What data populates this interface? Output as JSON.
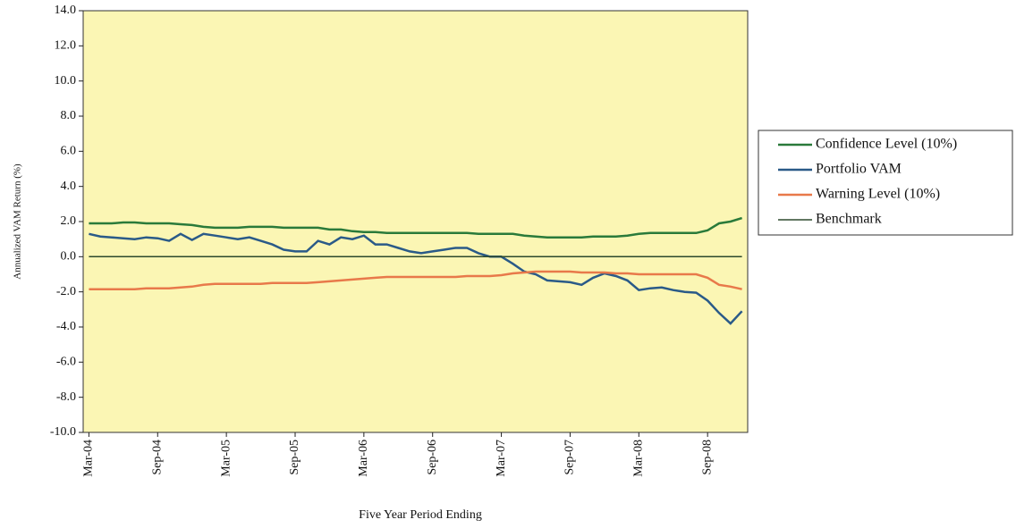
{
  "chart_data": {
    "type": "line",
    "x_label": "Five Year Period Ending",
    "y_label": "Annualized VAM Return (%)",
    "categories": [
      "Mar-04",
      null,
      null,
      null,
      null,
      null,
      "Sep-04",
      null,
      null,
      null,
      null,
      null,
      "Mar-05",
      null,
      null,
      null,
      null,
      null,
      "Sep-05",
      null,
      null,
      null,
      null,
      null,
      "Mar-06",
      null,
      null,
      null,
      null,
      null,
      "Sep-06",
      null,
      null,
      null,
      null,
      null,
      "Mar-07",
      null,
      null,
      null,
      null,
      null,
      "Sep-07",
      null,
      null,
      null,
      null,
      null,
      "Mar-08",
      null,
      null,
      null,
      null,
      null,
      "Sep-08",
      null,
      null,
      null
    ],
    "series": [
      {
        "name": "Confidence Level (10%)",
        "color": "#2a7a3a",
        "values": [
          1.9,
          1.9,
          1.9,
          1.95,
          1.95,
          1.9,
          1.9,
          1.9,
          1.85,
          1.8,
          1.7,
          1.65,
          1.65,
          1.65,
          1.7,
          1.7,
          1.7,
          1.65,
          1.65,
          1.65,
          1.65,
          1.55,
          1.55,
          1.45,
          1.4,
          1.4,
          1.35,
          1.35,
          1.35,
          1.35,
          1.35,
          1.35,
          1.35,
          1.35,
          1.3,
          1.3,
          1.3,
          1.3,
          1.2,
          1.15,
          1.1,
          1.1,
          1.1,
          1.1,
          1.15,
          1.15,
          1.15,
          1.2,
          1.3,
          1.35,
          1.35,
          1.35,
          1.35,
          1.35,
          1.5,
          1.9,
          2.0,
          2.2
        ]
      },
      {
        "name": "Portfolio VAM",
        "color": "#2a5a88",
        "values": [
          1.3,
          1.15,
          1.1,
          1.05,
          1.0,
          1.1,
          1.05,
          0.9,
          1.3,
          0.95,
          1.3,
          1.2,
          1.1,
          1.0,
          1.1,
          0.9,
          0.7,
          0.4,
          0.3,
          0.3,
          0.9,
          0.7,
          1.1,
          1.0,
          1.2,
          0.7,
          0.7,
          0.5,
          0.3,
          0.2,
          0.3,
          0.4,
          0.5,
          0.5,
          0.2,
          0.0,
          0.0,
          -0.4,
          -0.85,
          -1.0,
          -1.35,
          -1.4,
          -1.45,
          -1.6,
          -1.2,
          -0.95,
          -1.1,
          -1.35,
          -1.9,
          -1.8,
          -1.75,
          -1.9,
          -2.0,
          -2.05,
          -2.5,
          -3.2,
          -3.8,
          -3.1
        ]
      },
      {
        "name": "Warning Level (10%)",
        "color": "#e8794a",
        "values": [
          -1.85,
          -1.85,
          -1.85,
          -1.85,
          -1.85,
          -1.8,
          -1.8,
          -1.8,
          -1.75,
          -1.7,
          -1.6,
          -1.55,
          -1.55,
          -1.55,
          -1.55,
          -1.55,
          -1.5,
          -1.5,
          -1.5,
          -1.5,
          -1.45,
          -1.4,
          -1.35,
          -1.3,
          -1.25,
          -1.2,
          -1.15,
          -1.15,
          -1.15,
          -1.15,
          -1.15,
          -1.15,
          -1.15,
          -1.1,
          -1.1,
          -1.1,
          -1.05,
          -0.95,
          -0.9,
          -0.85,
          -0.85,
          -0.85,
          -0.85,
          -0.9,
          -0.9,
          -0.9,
          -0.95,
          -0.95,
          -1.0,
          -1.0,
          -1.0,
          -1.0,
          -1.0,
          -1.0,
          -1.2,
          -1.6,
          -1.7,
          -1.85
        ]
      },
      {
        "name": "Benchmark",
        "color": "#2d4a2d",
        "values": [
          0,
          0,
          0,
          0,
          0,
          0,
          0,
          0,
          0,
          0,
          0,
          0,
          0,
          0,
          0,
          0,
          0,
          0,
          0,
          0,
          0,
          0,
          0,
          0,
          0,
          0,
          0,
          0,
          0,
          0,
          0,
          0,
          0,
          0,
          0,
          0,
          0,
          0,
          0,
          0,
          0,
          0,
          0,
          0,
          0,
          0,
          0,
          0,
          0,
          0,
          0,
          0,
          0,
          0,
          0,
          0,
          0,
          0
        ]
      }
    ],
    "ylim": [
      -10,
      14
    ],
    "yticks": [
      {
        "value": -10,
        "label": "-10.0"
      },
      {
        "value": -8,
        "label": "-8.0"
      },
      {
        "value": -6,
        "label": "-6.0"
      },
      {
        "value": -4,
        "label": "-4.0"
      },
      {
        "value": -2,
        "label": "-2.0"
      },
      {
        "value": 0,
        "label": "0.0"
      },
      {
        "value": 2,
        "label": "2.0"
      },
      {
        "value": 4,
        "label": "4.0"
      },
      {
        "value": 6,
        "label": "6.0"
      },
      {
        "value": 8,
        "label": "8.0"
      },
      {
        "value": 10,
        "label": "10.0"
      },
      {
        "value": 12,
        "label": "12.0"
      },
      {
        "value": 14,
        "label": "14.0"
      }
    ],
    "plot_background": "#fbf6b4",
    "legend": "right"
  }
}
